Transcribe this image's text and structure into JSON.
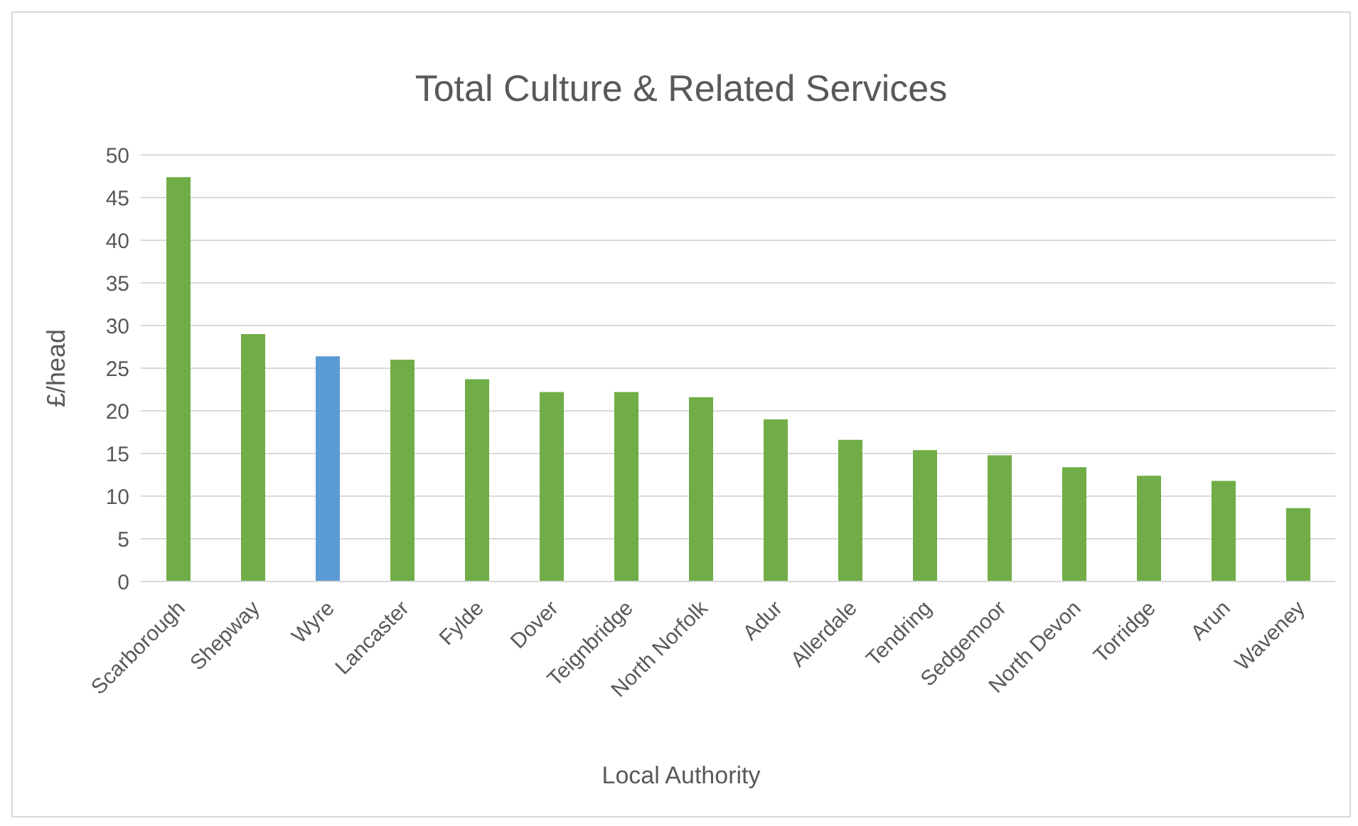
{
  "chart_data": {
    "type": "bar",
    "title": "Total Culture & Related Services",
    "xlabel": "Local Authority",
    "ylabel": "£/head",
    "categories": [
      "Scarborough",
      "Shepway",
      "Wyre",
      "Lancaster",
      "Fylde",
      "Dover",
      "Teignbridge",
      "North Norfolk",
      "Adur",
      "Allerdale",
      "Tendring",
      "Sedgemoor",
      "North Devon",
      "Torridge",
      "Arun",
      "Waveney"
    ],
    "values": [
      47.4,
      29.0,
      26.4,
      26.0,
      23.7,
      22.2,
      22.2,
      21.6,
      19.0,
      16.6,
      15.4,
      14.8,
      13.4,
      12.4,
      11.8,
      8.6
    ],
    "colors": [
      "#70ad47",
      "#70ad47",
      "#5b9bd5",
      "#70ad47",
      "#70ad47",
      "#70ad47",
      "#70ad47",
      "#70ad47",
      "#70ad47",
      "#70ad47",
      "#70ad47",
      "#70ad47",
      "#70ad47",
      "#70ad47",
      "#70ad47",
      "#70ad47"
    ],
    "ylim": [
      0,
      50
    ],
    "yticks": [
      0,
      5,
      10,
      15,
      20,
      25,
      30,
      35,
      40,
      45,
      50
    ],
    "grid": "y",
    "legend": false
  }
}
